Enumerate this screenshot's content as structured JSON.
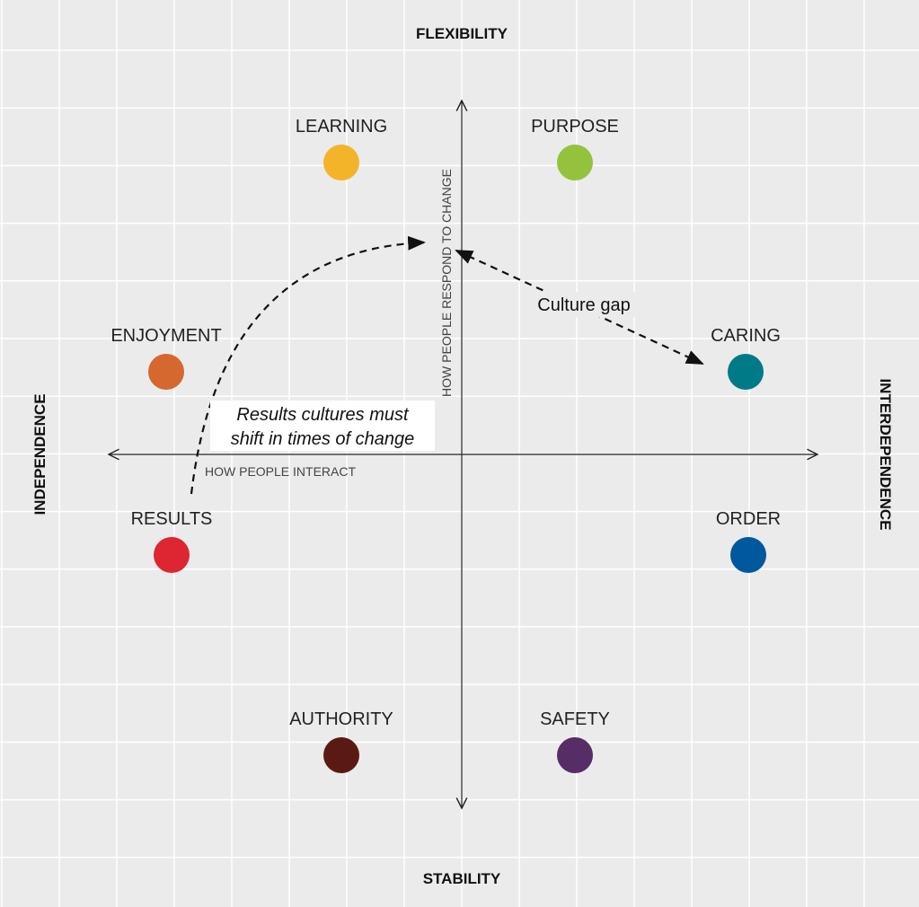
{
  "axes": {
    "top": "FLEXIBILITY",
    "bottom": "STABILITY",
    "left": "INDEPENDENCE",
    "right": "INTERDEPENDENCE",
    "vertical_label": "HOW PEOPLE RESPOND TO CHANGE",
    "horizontal_label": "HOW PEOPLE INTERACT"
  },
  "nodes": [
    {
      "label": "LEARNING",
      "color": "#f4b42a"
    },
    {
      "label": "PURPOSE",
      "color": "#95c23d"
    },
    {
      "label": "ENJOYMENT",
      "color": "#d4682f"
    },
    {
      "label": "CARING",
      "color": "#007a87"
    },
    {
      "label": "RESULTS",
      "color": "#dd2632"
    },
    {
      "label": "ORDER",
      "color": "#00599c"
    },
    {
      "label": "AUTHORITY",
      "color": "#5a1a14"
    },
    {
      "label": "SAFETY",
      "color": "#562d66"
    }
  ],
  "annotations": {
    "shift": [
      "Results cultures must",
      "shift in times of change"
    ],
    "gap": "Culture gap"
  }
}
